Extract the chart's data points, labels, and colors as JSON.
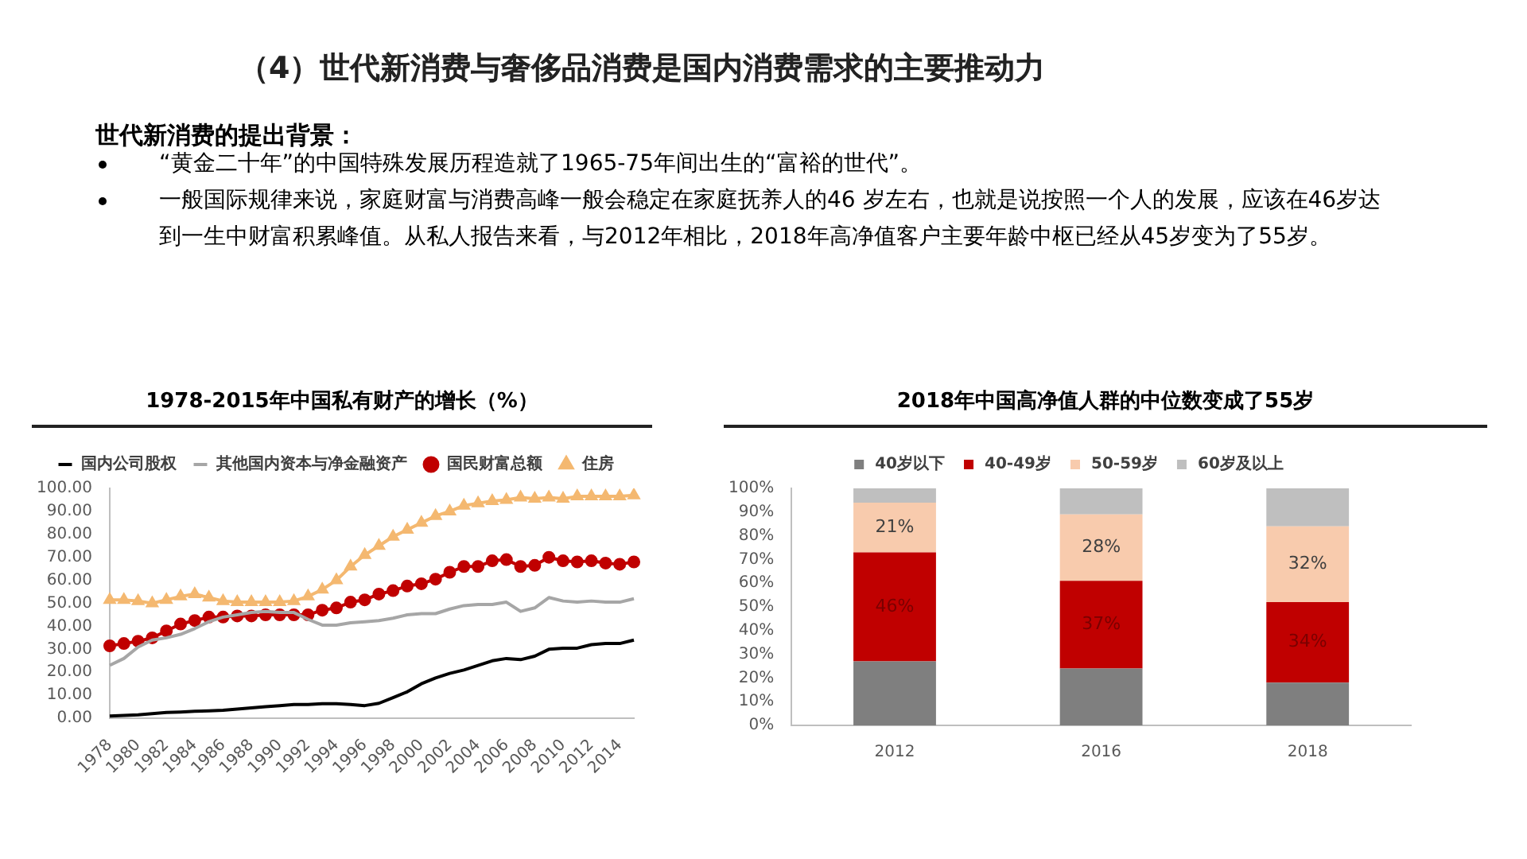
{
  "chart_data": [
    {
      "type": "other",
      "title": "（4）世代新消费与奢侈品消费是国内消费需求的主要推动力",
      "subtitle": "世代新消费的提出背景：",
      "annotations": [
        "“黄金二十年”的中国特殊发展历程造就了1965-75年间出生的“富裕的世代”。",
        "一般国际规律来说，家庭财富与消费高峰一般会稳定在家庭抚养人的46 岁左右，也就是说按照一个人的发展，应该在46岁达到一生中财富积累峰值。从私人报告来看，与2012年相比，2018年高净值客户主要年龄中枢已经从45岁变为了55岁。"
      ]
    },
    {
      "type": "line",
      "title": "1978-2015年中国私有财产的增长（%）",
      "legend": "top",
      "grid": false,
      "categories": [
        "1978",
        null,
        "1980",
        null,
        "1982",
        null,
        "1984",
        null,
        "1986",
        null,
        "1988",
        null,
        "1990",
        null,
        "1992",
        null,
        "1994",
        null,
        "1996",
        null,
        "1998",
        null,
        "2000",
        null,
        "2002",
        null,
        "2004",
        null,
        "2006",
        null,
        "2008",
        null,
        "2010",
        null,
        "2012",
        null,
        "2014",
        null
      ],
      "ylim": [
        0,
        100
      ],
      "yticks": [
        {
          "value": 0,
          "label": "0.00"
        },
        {
          "value": 10,
          "label": "10.00"
        },
        {
          "value": 20,
          "label": "20.00"
        },
        {
          "value": 30,
          "label": "30.00"
        },
        {
          "value": 40,
          "label": "40.00"
        },
        {
          "value": 50,
          "label": "50.00"
        },
        {
          "value": 60,
          "label": "60.00"
        },
        {
          "value": 70,
          "label": "70.00"
        },
        {
          "value": 80,
          "label": "80.00"
        },
        {
          "value": 90,
          "label": "90.00"
        },
        {
          "value": 100,
          "label": "100.00"
        }
      ],
      "series": [
        {
          "name": "国内公司股权",
          "color": "#000000",
          "marker": "none",
          "values": [
            1,
            1.2,
            1.5,
            2,
            2.5,
            2.7,
            3,
            3.2,
            3.5,
            4,
            4.5,
            5,
            5.5,
            6,
            6,
            6.3,
            6.3,
            6,
            5.5,
            6.5,
            9,
            11.5,
            15,
            17.5,
            19.5,
            21,
            23,
            25,
            26,
            25.5,
            27,
            30,
            30.5,
            30.5,
            32,
            32.5,
            32.5,
            34
          ]
        },
        {
          "name": "其他国内资本与净金融资产",
          "color": "#a6a6a6",
          "marker": "none",
          "values": [
            23,
            26,
            31,
            34,
            35,
            36.5,
            39,
            42,
            44,
            45,
            46,
            46.5,
            46,
            46,
            43,
            40.5,
            40.5,
            41.5,
            42,
            42.5,
            43.5,
            45,
            45.5,
            45.5,
            47.5,
            49,
            49.5,
            49.5,
            50.5,
            46.5,
            48,
            52.5,
            51,
            50.5,
            51,
            50.5,
            50.5,
            52
          ]
        },
        {
          "name": "国民财富总额",
          "color": "#c00000",
          "marker": "circle",
          "values": [
            31.5,
            32.5,
            33.5,
            35,
            38,
            41,
            42.5,
            44,
            44,
            44.5,
            44.5,
            45,
            45,
            45,
            45,
            47,
            48,
            50.5,
            51.5,
            54,
            55.5,
            57.5,
            58.5,
            60.5,
            63.5,
            66,
            66,
            68.5,
            69,
            66,
            66.5,
            70,
            68.5,
            68,
            68.5,
            67.5,
            67,
            68
          ]
        },
        {
          "name": "住房",
          "color": "#f4b870",
          "marker": "triangle",
          "values": [
            51.5,
            51.5,
            51,
            50,
            51.5,
            53,
            54,
            52.5,
            51,
            50.5,
            50.5,
            50.5,
            50.5,
            51,
            53,
            56,
            60,
            66,
            71,
            75,
            79,
            82,
            85,
            88,
            90,
            92.5,
            93.5,
            94.5,
            95,
            96,
            95.5,
            96,
            95.5,
            96.5,
            96.5,
            96.5,
            96.5,
            97
          ]
        }
      ]
    },
    {
      "type": "bar",
      "title": "2018年中国高净值人群的中位数变成了55岁",
      "stacked": true,
      "legend": "top",
      "grid": false,
      "categories": [
        "2012",
        "2016",
        "2018"
      ],
      "ylim": [
        0,
        100
      ],
      "yticks": [
        {
          "value": 0,
          "label": "0%"
        },
        {
          "value": 10,
          "label": "10%"
        },
        {
          "value": 20,
          "label": "20%"
        },
        {
          "value": 30,
          "label": "30%"
        },
        {
          "value": 40,
          "label": "40%"
        },
        {
          "value": 50,
          "label": "50%"
        },
        {
          "value": 60,
          "label": "60%"
        },
        {
          "value": 70,
          "label": "70%"
        },
        {
          "value": 80,
          "label": "80%"
        },
        {
          "value": 90,
          "label": "90%"
        },
        {
          "value": 100,
          "label": "100%"
        }
      ],
      "series": [
        {
          "name": "40岁以下",
          "color": "#7f7f7f",
          "values": [
            27,
            24,
            18
          ]
        },
        {
          "name": "40-49岁",
          "color": "#c00000",
          "values": [
            46,
            37,
            34
          ],
          "value_labels": [
            "46%",
            "37%",
            "34%"
          ]
        },
        {
          "name": "50-59岁",
          "color": "#f8cbad",
          "values": [
            21,
            28,
            32
          ],
          "value_labels": [
            "21%",
            "28%",
            "32%"
          ]
        },
        {
          "name": "60岁及以上",
          "color": "#bfbfbf",
          "values": [
            6,
            11,
            16
          ]
        }
      ]
    }
  ]
}
